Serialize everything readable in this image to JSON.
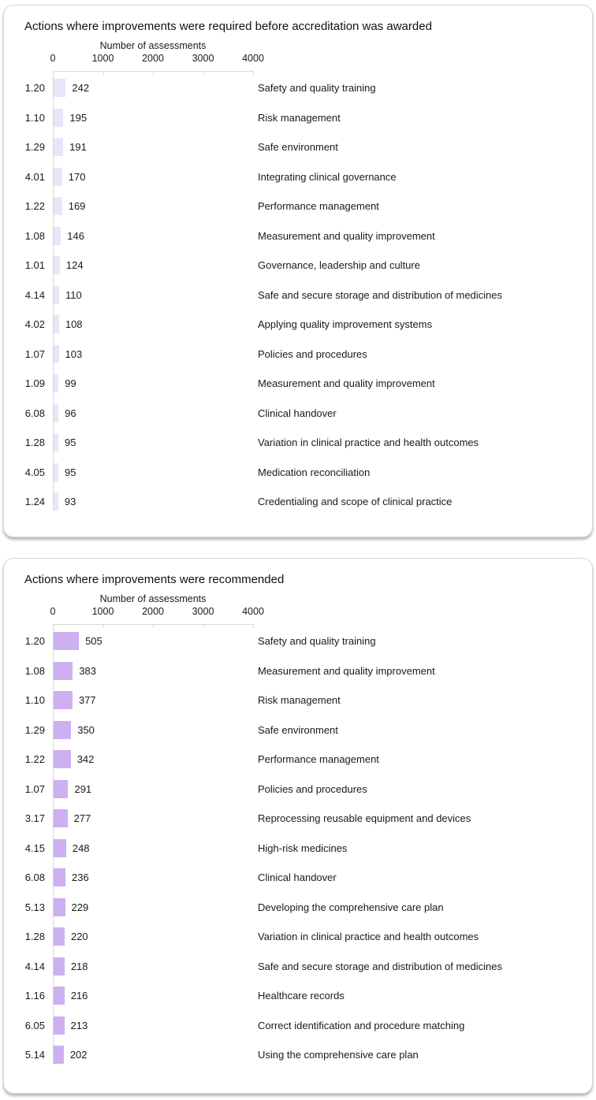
{
  "colors": {
    "axis_line": "#d9d9d9",
    "text": "#1a1a1a",
    "card_border": "#d5d5d5",
    "chart1_bar": "#e9e4f9",
    "chart2_bar": "#ccb0ef"
  },
  "chart_data": [
    {
      "type": "bar",
      "orientation": "horizontal",
      "title": "Actions where improvements were required before accreditation was awarded",
      "xlabel": "Number of assessments",
      "xlim": [
        0,
        4000
      ],
      "xticks": [
        "0",
        "1000",
        "2000",
        "3000",
        "4000"
      ],
      "grid": false,
      "bar_color": "#e9e4f9",
      "categories": [
        "1.20",
        "1.10",
        "1.29",
        "4.01",
        "1.22",
        "1.08",
        "1.01",
        "4.14",
        "4.02",
        "1.07",
        "1.09",
        "6.08",
        "1.28",
        "4.05",
        "1.24"
      ],
      "values": [
        242,
        195,
        191,
        170,
        169,
        146,
        124,
        110,
        108,
        103,
        99,
        96,
        95,
        95,
        93
      ],
      "labels": [
        "Safety and quality training",
        "Risk management",
        "Safe environment",
        "Integrating clinical governance",
        "Performance management",
        "Measurement and quality improvement",
        "Governance, leadership and culture",
        "Safe and secure storage and distribution of medicines",
        "Applying quality improvement systems",
        "Policies and procedures",
        "Measurement and quality improvement",
        "Clinical handover",
        "Variation in clinical practice and health outcomes",
        "Medication reconciliation",
        "Credentialing and scope of clinical practice"
      ]
    },
    {
      "type": "bar",
      "orientation": "horizontal",
      "title": "Actions where improvements were recommended",
      "xlabel": "Number of assessments",
      "xlim": [
        0,
        4000
      ],
      "xticks": [
        "0",
        "1000",
        "2000",
        "3000",
        "4000"
      ],
      "grid": false,
      "bar_color": "#ccb0ef",
      "categories": [
        "1.20",
        "1.08",
        "1.10",
        "1.29",
        "1.22",
        "1.07",
        "3.17",
        "4.15",
        "6.08",
        "5.13",
        "1.28",
        "4.14",
        "1.16",
        "6.05",
        "5.14"
      ],
      "values": [
        505,
        383,
        377,
        350,
        342,
        291,
        277,
        248,
        236,
        229,
        220,
        218,
        216,
        213,
        202
      ],
      "labels": [
        "Safety and quality training",
        "Measurement and quality improvement",
        "Risk management",
        "Safe environment",
        "Performance management",
        "Policies and procedures",
        "Reprocessing reusable equipment and devices",
        "High-risk medicines",
        "Clinical handover",
        "Developing the comprehensive care plan",
        "Variation in clinical practice and health outcomes",
        "Safe and secure storage and distribution of medicines",
        "Healthcare records",
        "Correct identification and procedure matching",
        "Using the comprehensive care plan"
      ]
    }
  ]
}
